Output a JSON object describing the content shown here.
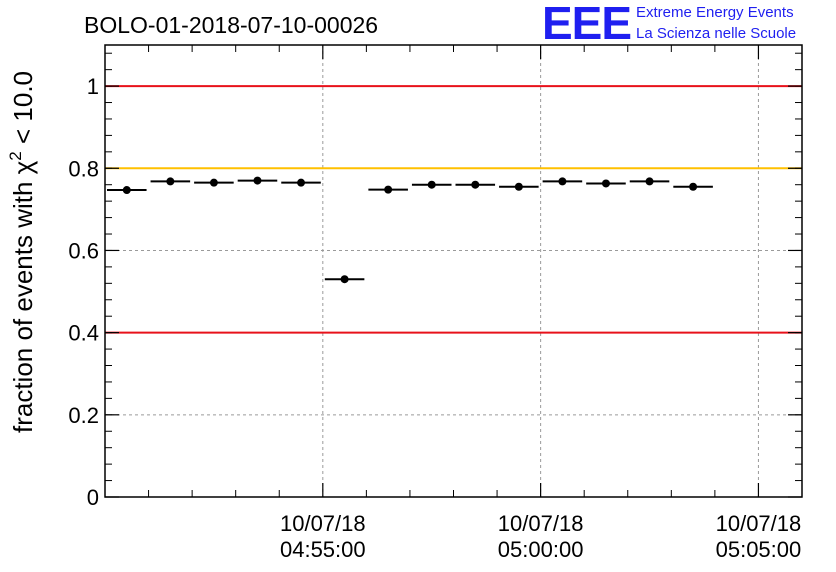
{
  "header": {
    "run_title": "BOLO-01-2018-07-10-00026",
    "logo_mark": "EEE",
    "logo_line1": "Extreme Energy Events",
    "logo_line2": "La Scienza nelle Scuole",
    "logo_color": "#1f1ff0"
  },
  "chart_data": {
    "type": "scatter",
    "title": "BOLO-01-2018-07-10-00026",
    "ylabel": "fraction of events with χ² < 10.0",
    "ylabel_parts": [
      "fraction of events with ",
      "χ",
      "2",
      " < 10.0"
    ],
    "xlabel": "",
    "ylim": [
      0,
      1.1
    ],
    "y_ticks": [
      0,
      0.2,
      0.4,
      0.6,
      0.8,
      1
    ],
    "y_tick_labels": [
      "0",
      "0.2",
      "0.4",
      "0.6",
      "0.8",
      "1"
    ],
    "x_range": [
      "04:50:00",
      "05:06:00"
    ],
    "x_labeled_ticks": [
      {
        "time": "04:55:00",
        "date_label": "10/07/18",
        "time_label": "04:55:00"
      },
      {
        "time": "05:00:00",
        "date_label": "10/07/18",
        "time_label": "05:00:00"
      },
      {
        "time": "05:05:00",
        "date_label": "10/07/18",
        "time_label": "05:05:00"
      }
    ],
    "x_minor_ticks": [
      "04:51:00",
      "04:52:00",
      "04:53:00",
      "04:54:00",
      "04:56:00",
      "04:57:00",
      "04:58:00",
      "04:59:00",
      "05:01:00",
      "05:02:00",
      "05:03:00",
      "05:04:00",
      "05:06:00"
    ],
    "grid": true,
    "reference_lines": [
      {
        "y": 1.0,
        "color": "#e8111a"
      },
      {
        "y": 0.8,
        "color": "#ffc000"
      },
      {
        "y": 0.4,
        "color": "#e8111a"
      }
    ],
    "points": [
      {
        "x_start": "04:50:00",
        "x_end": "04:51:00",
        "y": 0.747
      },
      {
        "x_start": "04:51:00",
        "x_end": "04:52:00",
        "y": 0.768
      },
      {
        "x_start": "04:52:00",
        "x_end": "04:53:00",
        "y": 0.765
      },
      {
        "x_start": "04:53:00",
        "x_end": "04:54:00",
        "y": 0.77
      },
      {
        "x_start": "04:54:00",
        "x_end": "04:55:00",
        "y": 0.765
      },
      {
        "x_start": "04:55:00",
        "x_end": "04:56:00",
        "y": 0.53
      },
      {
        "x_start": "04:56:00",
        "x_end": "04:57:00",
        "y": 0.748
      },
      {
        "x_start": "04:57:00",
        "x_end": "04:58:00",
        "y": 0.76
      },
      {
        "x_start": "04:58:00",
        "x_end": "04:59:00",
        "y": 0.76
      },
      {
        "x_start": "04:59:00",
        "x_end": "05:00:00",
        "y": 0.755
      },
      {
        "x_start": "05:00:00",
        "x_end": "05:01:00",
        "y": 0.768
      },
      {
        "x_start": "05:01:00",
        "x_end": "05:02:00",
        "y": 0.763
      },
      {
        "x_start": "05:02:00",
        "x_end": "05:03:00",
        "y": 0.768
      },
      {
        "x_start": "05:03:00",
        "x_end": "05:04:00",
        "y": 0.755
      }
    ]
  }
}
